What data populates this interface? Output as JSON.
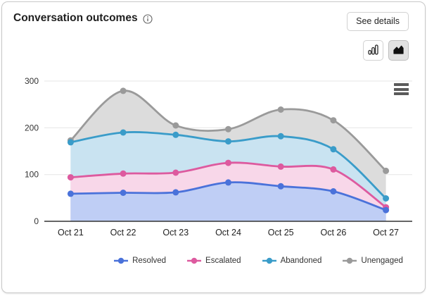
{
  "header": {
    "title": "Conversation outcomes",
    "info_icon": "info-circle-icon",
    "see_details_label": "See details"
  },
  "toolbar": {
    "buttons": [
      {
        "name": "column-chart-toggle",
        "icon": "column-chart-icon",
        "selected": false
      },
      {
        "name": "area-chart-toggle",
        "icon": "area-chart-icon",
        "selected": true
      }
    ]
  },
  "chart_menu": {
    "icon": "hamburger-menu-icon"
  },
  "chart_data": {
    "type": "area",
    "title": "Conversation outcomes",
    "categories": [
      "Oct 21",
      "Oct 22",
      "Oct 23",
      "Oct 24",
      "Oct 25",
      "Oct 26",
      "Oct 27"
    ],
    "series": [
      {
        "name": "Resolved",
        "color": "#4a72da",
        "fill": "#bfcef5",
        "values": [
          59,
          61,
          62,
          83,
          75,
          64,
          24
        ]
      },
      {
        "name": "Escalated",
        "color": "#dd5a9f",
        "fill": "#f8d7e9",
        "values": [
          94,
          102,
          104,
          125,
          117,
          111,
          30
        ]
      },
      {
        "name": "Abandoned",
        "color": "#3a9cc9",
        "fill": "#c9e3f1",
        "values": [
          169,
          190,
          185,
          171,
          182,
          154,
          49
        ]
      },
      {
        "name": "Unengaged",
        "color": "#9a9a9a",
        "fill": "#dcdcdc",
        "values": [
          173,
          279,
          205,
          197,
          239,
          216,
          108
        ]
      }
    ],
    "xlabel": "",
    "ylabel": "",
    "ylim": [
      0,
      300
    ],
    "yticks": [
      0,
      100,
      200,
      300
    ],
    "grid": true,
    "legend_position": "bottom",
    "colors": {
      "gridline": "#e6e6e6",
      "axis_line": "#333333",
      "tick_label": "#333333"
    }
  }
}
